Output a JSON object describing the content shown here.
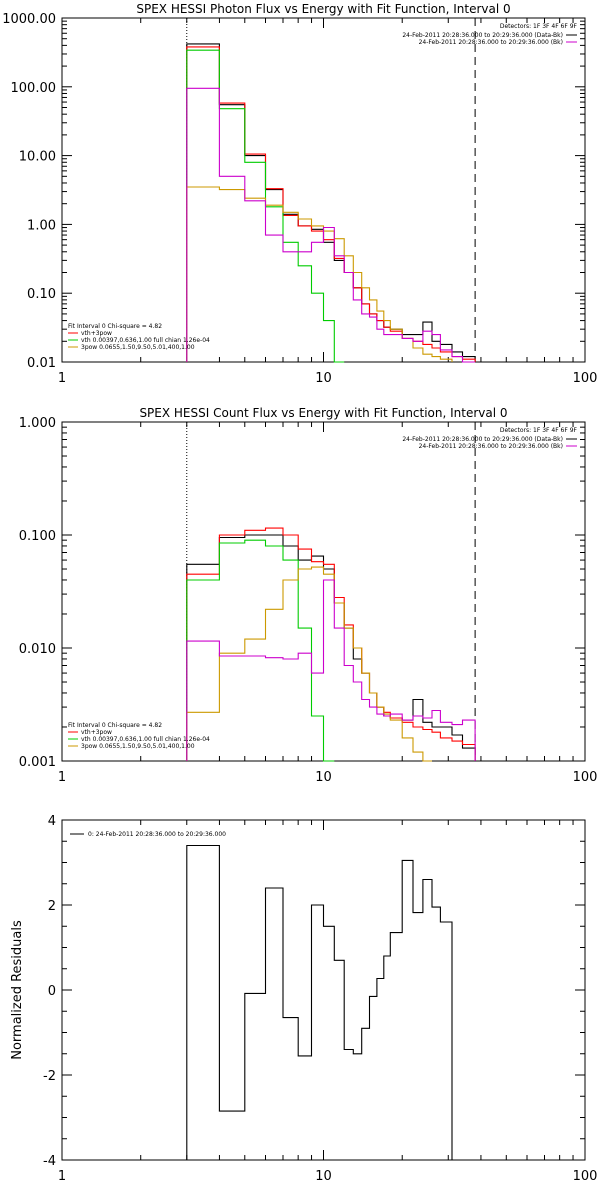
{
  "chart_data": [
    {
      "id": "photon",
      "type": "line",
      "title": "SPEX HESSI Photon Flux vs Energy with Fit Function, Interval 0",
      "xlabel": "",
      "ylabel": "",
      "xscale": "log",
      "yscale": "log",
      "xlim": [
        1,
        100
      ],
      "ylim": [
        0.01,
        1000
      ],
      "xticks": [
        1,
        10,
        100
      ],
      "xtick_labels": [
        "1",
        "10",
        "100"
      ],
      "yticks": [
        0.01,
        0.1,
        1,
        10,
        100,
        1000
      ],
      "ytick_labels": [
        "0.01",
        "0.10",
        "1.00",
        "10.00",
        "100.00",
        "1000.00"
      ],
      "vlines": [
        {
          "x": 3,
          "style": "dotted"
        },
        {
          "x": 38,
          "style": "dashed"
        }
      ],
      "top_legend": {
        "header": "Detectors: 1F 3F 4F 6F 9F",
        "lines": [
          {
            "text": "24-Feb-2011 20:28:36.000 to 20:29:36.000 (Data-Bk)",
            "color": "#000000"
          },
          {
            "text": "24-Feb-2011 20:28:36.000 to 20:29:36.000 (Bk)",
            "color": "#cc00cc"
          }
        ]
      },
      "bottom_legend": {
        "header": "Fit Interval 0   Chi-square = 4.82",
        "lines": [
          {
            "text": "vth+3pow",
            "color": "#ff0000"
          },
          {
            "text": "vth 0.00397,0.636,1.00   full chian 1.26e-04",
            "color": "#00cc00"
          },
          {
            "text": "3pow 0.0655,1.50,9.50,5.01,400,1.00",
            "color": "#cc9900"
          }
        ]
      },
      "bin_edges": [
        3,
        4,
        5,
        6,
        7,
        8,
        9,
        10,
        11,
        12,
        13,
        14,
        15,
        16,
        17,
        18,
        20,
        22,
        24,
        26,
        28,
        31,
        34,
        38
      ],
      "series": [
        {
          "color": "#000000",
          "values": [
            420,
            55,
            10,
            3.2,
            1.4,
            0.95,
            0.85,
            0.55,
            0.3,
            0.2,
            0.12,
            0.07,
            0.05,
            0.04,
            0.032,
            0.03,
            0.025,
            0.025,
            0.038,
            0.02,
            0.018,
            0.014,
            0.012
          ]
        },
        {
          "color": "#ff0000",
          "values": [
            380,
            58,
            10.5,
            3.3,
            1.35,
            0.95,
            0.8,
            0.6,
            0.32,
            0.2,
            0.12,
            0.07,
            0.05,
            0.04,
            0.032,
            0.028,
            0.022,
            0.02,
            0.018,
            0.016,
            0.014,
            0.012,
            0.011
          ]
        },
        {
          "color": "#00cc00",
          "values": [
            340,
            48,
            8,
            1.8,
            0.55,
            0.25,
            0.1,
            0.04,
            0.01
          ]
        },
        {
          "color": "#cc9900",
          "values": [
            3.5,
            3.2,
            2.4,
            1.9,
            1.5,
            1.2,
            0.95,
            0.8,
            0.62,
            0.35,
            0.2,
            0.12,
            0.08,
            0.055,
            0.04,
            0.03,
            0.022,
            0.016,
            0.013,
            0.012,
            0.011
          ]
        },
        {
          "color": "#cc00cc",
          "values": [
            95,
            5,
            2.2,
            0.7,
            0.4,
            0.4,
            0.55,
            0.9,
            0.35,
            0.2,
            0.08,
            0.05,
            0.045,
            0.03,
            0.025,
            0.025,
            0.022,
            0.02,
            0.028,
            0.025,
            0.015,
            0.012,
            0.01
          ]
        }
      ]
    },
    {
      "id": "count",
      "type": "line",
      "title": "SPEX HESSI Count Flux vs Energy with Fit Function, Interval 0",
      "xlabel": "",
      "ylabel": "",
      "xscale": "log",
      "yscale": "log",
      "xlim": [
        1,
        100
      ],
      "ylim": [
        0.001,
        1
      ],
      "xticks": [
        1,
        10,
        100
      ],
      "xtick_labels": [
        "1",
        "10",
        "100"
      ],
      "yticks": [
        0.001,
        0.01,
        0.1,
        1
      ],
      "ytick_labels": [
        "0.001",
        "0.010",
        "0.100",
        "1.000"
      ],
      "vlines": [
        {
          "x": 3,
          "style": "dotted"
        },
        {
          "x": 38,
          "style": "dashed"
        }
      ],
      "top_legend": {
        "header": "Detectors: 1F 3F 4F 6F 9F",
        "lines": [
          {
            "text": "24-Feb-2011 20:28:36.000 to 20:29:36.000 (Data-Bk)",
            "color": "#000000"
          },
          {
            "text": "24-Feb-2011 20:28:36.000 to 20:29:36.000 (Bk)",
            "color": "#cc00cc"
          }
        ]
      },
      "bottom_legend": {
        "header": "Fit Interval 0   Chi-square = 4.82",
        "lines": [
          {
            "text": "vth+3pow",
            "color": "#ff0000"
          },
          {
            "text": "vth 0.00397,0.636,1.00   full chian 1.26e-04",
            "color": "#00cc00"
          },
          {
            "text": "3pow 0.0655,1.50,9.50,5.01,400,1.00",
            "color": "#cc9900"
          }
        ]
      },
      "bin_edges": [
        3,
        4,
        5,
        6,
        7,
        8,
        9,
        10,
        11,
        12,
        13,
        14,
        15,
        16,
        17,
        18,
        20,
        22,
        24,
        26,
        28,
        31,
        34,
        38
      ],
      "series": [
        {
          "color": "#000000",
          "values": [
            0.055,
            0.095,
            0.1,
            0.1,
            0.08,
            0.06,
            0.065,
            0.05,
            0.025,
            0.015,
            0.008,
            0.006,
            0.004,
            0.003,
            0.0025,
            0.0024,
            0.0023,
            0.0035,
            0.0022,
            0.002,
            0.002,
            0.0017,
            0.0013
          ]
        },
        {
          "color": "#ff0000",
          "values": [
            0.045,
            0.1,
            0.11,
            0.115,
            0.1,
            0.075,
            0.058,
            0.055,
            0.028,
            0.016,
            0.01,
            0.006,
            0.004,
            0.003,
            0.0027,
            0.0024,
            0.0022,
            0.002,
            0.0019,
            0.0018,
            0.0016,
            0.0015,
            0.0014
          ]
        },
        {
          "color": "#00cc00",
          "values": [
            0.04,
            0.085,
            0.09,
            0.08,
            0.06,
            0.015,
            0.0025,
            0.001
          ]
        },
        {
          "color": "#cc9900",
          "values": [
            0.0027,
            0.009,
            0.012,
            0.022,
            0.04,
            0.05,
            0.052,
            0.045,
            0.025,
            0.015,
            0.01,
            0.006,
            0.004,
            0.003,
            0.0026,
            0.0023,
            0.0016,
            0.0012,
            0.001
          ]
        },
        {
          "color": "#cc00cc",
          "values": [
            0.0115,
            0.0085,
            0.0085,
            0.0082,
            0.008,
            0.009,
            0.006,
            0.04,
            0.015,
            0.007,
            0.005,
            0.0035,
            0.003,
            0.0026,
            0.0025,
            0.0026,
            0.0023,
            0.0025,
            0.0024,
            0.0028,
            0.0022,
            0.0021,
            0.0023
          ]
        }
      ]
    },
    {
      "id": "residuals",
      "type": "line",
      "title": "",
      "xlabel": "",
      "ylabel": "Normalized Residuals",
      "xscale": "log",
      "yscale": "linear",
      "xlim": [
        1,
        100
      ],
      "ylim": [
        -4,
        4
      ],
      "xticks": [
        1,
        10,
        100
      ],
      "xtick_labels": [
        "1",
        "10",
        "100"
      ],
      "yticks": [
        -4,
        -2,
        0,
        2,
        4
      ],
      "ytick_labels": [
        "-4",
        "-2",
        "0",
        "2",
        "4"
      ],
      "legend": {
        "text": "0: 24-Feb-2011 20:28:36.000 to 20:29:36.000",
        "color": "#000000"
      },
      "bin_edges": [
        3,
        4,
        5,
        6,
        7,
        8,
        9,
        10,
        11,
        12,
        13,
        14,
        15,
        16,
        17,
        18,
        20,
        22,
        24,
        26,
        28,
        31,
        34,
        38
      ],
      "series": [
        {
          "color": "#000000",
          "values": [
            3.4,
            -2.85,
            -0.08,
            2.4,
            -0.65,
            -1.55,
            2.0,
            1.5,
            0.7,
            -1.4,
            -1.5,
            -0.9,
            -0.15,
            0.27,
            0.8,
            1.35,
            3.05,
            1.82,
            2.6,
            1.95,
            1.6,
            null,
            null
          ]
        }
      ]
    }
  ]
}
